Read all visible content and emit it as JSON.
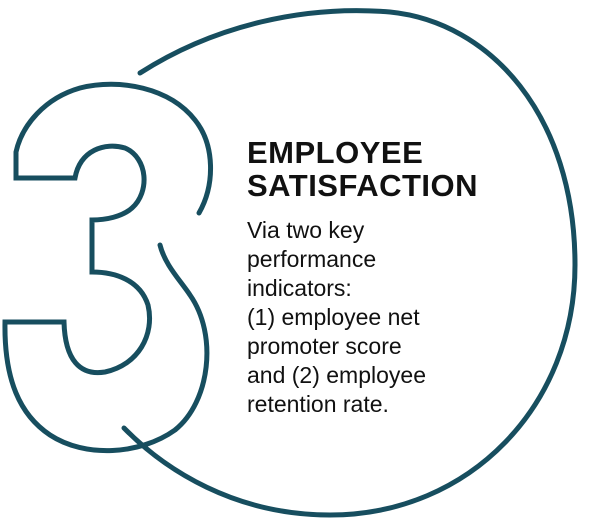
{
  "colors": {
    "outline": "#174e5f",
    "text": "#111111",
    "background": "#ffffff"
  },
  "badge": {
    "numeral": "3",
    "shape": "outlined-numeral-with-circle"
  },
  "title": {
    "line1": "EMPLOYEE",
    "line2": "SATISFACTION"
  },
  "description": {
    "lines": [
      "Via two key",
      "performance",
      "indicators:",
      "(1) employee net",
      "promoter score",
      "and (2) employee",
      "retention rate."
    ]
  }
}
